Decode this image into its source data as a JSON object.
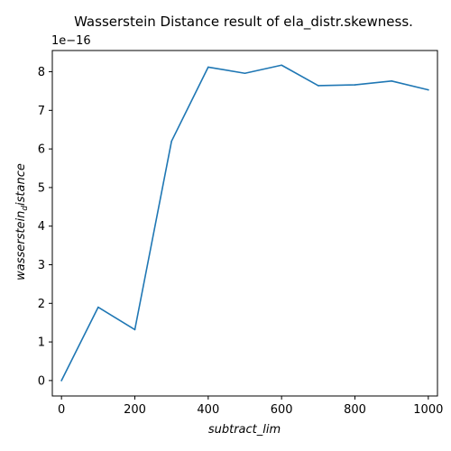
{
  "chart_data": {
    "type": "line",
    "title": "Wasserstein Distance result of ela_distr.skewness.",
    "xlabel": "subtract_lim",
    "ylabel_main": "wasserstein",
    "ylabel_sub": "d",
    "ylabel_tail": "istance",
    "y_offset_label": "1e−16",
    "xlim": [
      -25,
      1025
    ],
    "ylim": [
      -0.4,
      8.55
    ],
    "x_ticks": [
      0,
      200,
      400,
      600,
      800,
      1000
    ],
    "x_tick_labels": [
      "0",
      "200",
      "400",
      "600",
      "800",
      "1000"
    ],
    "y_ticks": [
      0,
      1,
      2,
      3,
      4,
      5,
      6,
      7,
      8
    ],
    "y_tick_labels": [
      "0",
      "1",
      "2",
      "3",
      "4",
      "5",
      "6",
      "7",
      "8"
    ],
    "grid": false,
    "series": [
      {
        "color": "#1f77b4",
        "x": [
          0,
          100,
          200,
          300,
          400,
          500,
          600,
          700,
          800,
          900,
          1000
        ],
        "y": [
          0.0,
          1.9,
          1.32,
          6.2,
          8.12,
          7.96,
          8.17,
          7.64,
          7.66,
          7.76,
          7.53
        ]
      }
    ]
  }
}
